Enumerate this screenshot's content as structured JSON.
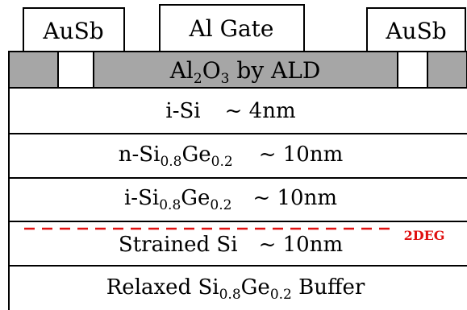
{
  "colors": {
    "oxide_fill": "#a6a6a6",
    "outline": "#000000",
    "twodeg": "#e01010",
    "background": "#ffffff"
  },
  "contacts": {
    "left": "AuSb",
    "gate": "Al Gate",
    "right": "AuSb"
  },
  "oxide": {
    "prefix": "Al",
    "sub1": "2",
    "mid": "O",
    "sub2": "3",
    "suffix": " by ALD"
  },
  "layers": {
    "cap": {
      "name": "i-Si",
      "thickness": "~ 4nm"
    },
    "doped": {
      "name": "n-Si",
      "sub_a": "0.8",
      "elem": "Ge",
      "sub_b": "0.2",
      "thickness": "~ 10nm"
    },
    "spacer": {
      "name": "i-Si",
      "sub_a": "0.8",
      "elem": "Ge",
      "sub_b": "0.2",
      "thickness": "~ 10nm"
    },
    "channel": {
      "name": "Strained Si",
      "thickness": "~ 10nm"
    },
    "buffer": {
      "name": "Relaxed Si",
      "sub_a": "0.8",
      "elem": "Ge",
      "sub_b": "0.2",
      "suffix": " Buffer"
    }
  },
  "twodeg_label": "2DEG"
}
